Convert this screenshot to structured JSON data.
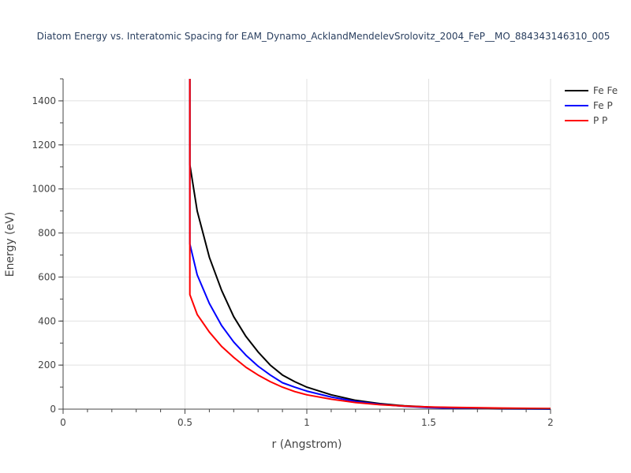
{
  "chart_data": {
    "type": "line",
    "title": "Diatom Energy vs. Interatomic Spacing for EAM_Dynamo_AcklandMendelevSrolovitz_2004_FeP__MO_884343146310_005",
    "xlabel": "r (Angstrom)",
    "ylabel": "Energy (eV)",
    "xlim": [
      0,
      2
    ],
    "ylim": [
      0,
      1500
    ],
    "xticks": [
      0,
      0.5,
      1,
      1.5,
      2
    ],
    "xtick_labels": [
      "0",
      "0.5",
      "1",
      "1.5",
      "2"
    ],
    "yticks": [
      0,
      200,
      400,
      600,
      800,
      1000,
      1200,
      1400
    ],
    "ytick_labels": [
      "0",
      "200",
      "400",
      "600",
      "800",
      "1000",
      "1200",
      "1400"
    ],
    "grid": true,
    "legend_position": "top-right",
    "series": [
      {
        "name": "Fe Fe",
        "color": "#000000",
        "x": [
          0.52,
          0.52,
          0.55,
          0.6,
          0.65,
          0.7,
          0.75,
          0.8,
          0.85,
          0.9,
          0.95,
          1.0,
          1.1,
          1.2,
          1.3,
          1.4,
          1.5,
          1.6,
          1.8,
          2.0
        ],
        "y": [
          1500,
          1110,
          900,
          690,
          540,
          420,
          330,
          260,
          200,
          155,
          125,
          100,
          65,
          40,
          25,
          15,
          10,
          6,
          3,
          2
        ]
      },
      {
        "name": "Fe P",
        "color": "#0000ff",
        "x": [
          0.52,
          0.52,
          0.55,
          0.6,
          0.65,
          0.7,
          0.75,
          0.8,
          0.85,
          0.9,
          0.95,
          1.0,
          1.1,
          1.2,
          1.3,
          1.4,
          1.5,
          1.6,
          1.8,
          2.0
        ],
        "y": [
          1500,
          750,
          610,
          480,
          380,
          305,
          245,
          195,
          155,
          120,
          100,
          82,
          55,
          35,
          22,
          13,
          7,
          4,
          1,
          0
        ]
      },
      {
        "name": "P P",
        "color": "#ff0000",
        "x": [
          0.52,
          0.52,
          0.55,
          0.6,
          0.65,
          0.7,
          0.75,
          0.8,
          0.85,
          0.9,
          0.95,
          1.0,
          1.1,
          1.2,
          1.3,
          1.4,
          1.5,
          1.6,
          1.8,
          2.0
        ],
        "y": [
          1500,
          520,
          430,
          350,
          285,
          235,
          190,
          155,
          125,
          100,
          80,
          65,
          45,
          30,
          20,
          14,
          10,
          8,
          5,
          3
        ]
      }
    ]
  }
}
